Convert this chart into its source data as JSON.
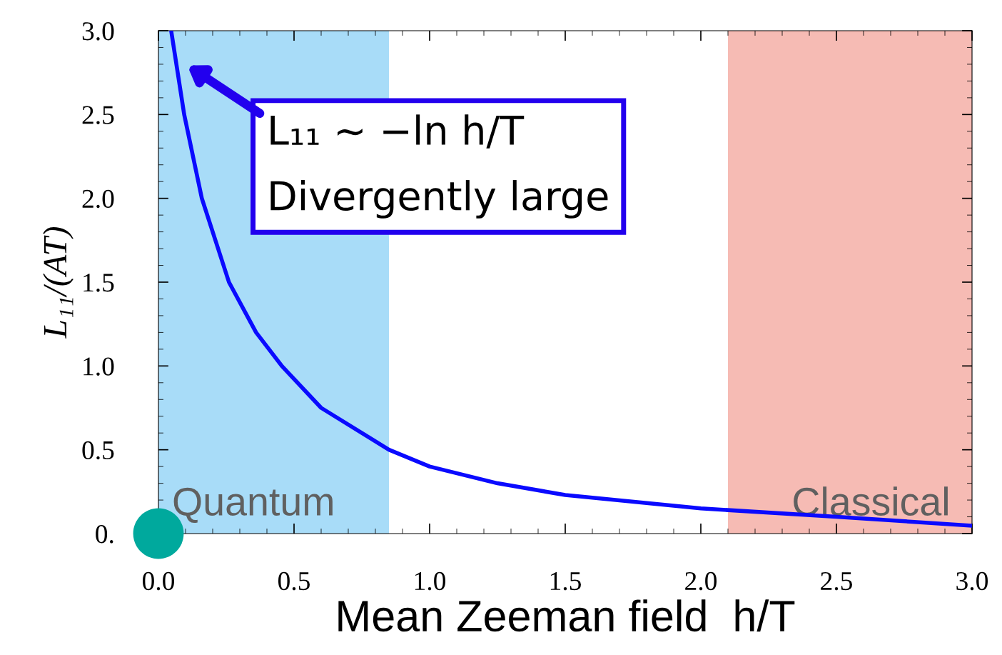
{
  "chart_data": {
    "type": "line",
    "xlabel": "Mean Zeeman field  h/T",
    "ylabel": "L₁₁/(AT)",
    "xlim": [
      0,
      3
    ],
    "ylim": [
      0,
      3
    ],
    "xticks": [
      {
        "value": 0,
        "label": "0.0"
      },
      {
        "value": 0.5,
        "label": "0.5"
      },
      {
        "value": 1,
        "label": "1.0"
      },
      {
        "value": 1.5,
        "label": "1.5"
      },
      {
        "value": 2,
        "label": "2.0"
      },
      {
        "value": 2.5,
        "label": "2.5"
      },
      {
        "value": 3,
        "label": "3.0"
      }
    ],
    "yticks": [
      {
        "value": 0,
        "label": "0."
      },
      {
        "value": 0.5,
        "label": "0.5"
      },
      {
        "value": 1,
        "label": "1.0"
      },
      {
        "value": 1.5,
        "label": "1.5"
      },
      {
        "value": 2,
        "label": "2.0"
      },
      {
        "value": 2.5,
        "label": "2.5"
      },
      {
        "value": 3,
        "label": "3.0"
      }
    ],
    "grid": false,
    "legend": false,
    "series": [
      {
        "color": "#0a0aff",
        "x": [
          0.047,
          0.095,
          0.16,
          0.26,
          0.36,
          0.455,
          0.6,
          0.85,
          1.0,
          1.25,
          1.5,
          2.0,
          2.5,
          3.0
        ],
        "values": [
          3.0,
          2.5,
          2.0,
          1.5,
          1.2,
          1.0,
          0.75,
          0.5,
          0.4,
          0.3,
          0.23,
          0.15,
          0.1,
          0.047
        ]
      },
      {
        "type": "scatter",
        "color": "#00a99d",
        "x": [
          0
        ],
        "values": [
          0
        ]
      }
    ],
    "bands": [
      {
        "axis": "x",
        "from": 0,
        "to": 0.85,
        "label": "Quantum",
        "color": "#a8dcf8"
      },
      {
        "axis": "x",
        "from": 2.1,
        "to": 3.0,
        "label": "Classical",
        "color": "#f6bbb4"
      }
    ],
    "annotations": [
      "L₁₁ ∼ −ln h/T\nDivergently large"
    ]
  }
}
